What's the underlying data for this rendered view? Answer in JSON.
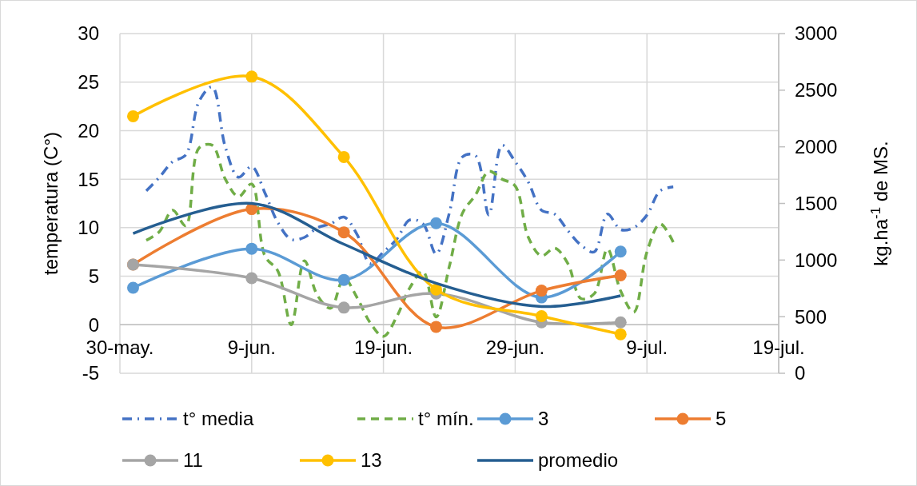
{
  "chart_data": {
    "type": "line",
    "ylabel": "temperatura (C°)",
    "y2label": "kg.ha$^{-1}$ de MS.",
    "xlim": [
      "--05-30",
      "--07-19"
    ],
    "xticks": [
      {
        "value": "--05-30",
        "label": "30-may."
      },
      {
        "value": "--06-09",
        "label": "9-jun."
      },
      {
        "value": "--06-19",
        "label": "19-jun."
      },
      {
        "value": "--06-29",
        "label": "29-jun."
      },
      {
        "value": "--07-09",
        "label": "9-jul."
      },
      {
        "value": "--07-19",
        "label": "19-jul."
      }
    ],
    "ylim": [
      -5,
      30
    ],
    "yticks": [
      -5,
      0,
      5,
      10,
      15,
      20,
      25,
      30
    ],
    "y2lim": [
      0,
      3000
    ],
    "y2ticks": [
      0,
      500,
      1000,
      1500,
      2000,
      2500,
      3000
    ],
    "grid": true,
    "legend": "bottom",
    "series": [
      {
        "name": "t° media",
        "color": "#4472c4",
        "line_style": "dashdot",
        "marker": "none",
        "x": [
          "--06-01",
          "--06-02",
          "--06-03",
          "--06-04",
          "--06-05",
          "--06-06",
          "--06-07",
          "--06-08",
          "--06-09",
          "--06-10",
          "--06-11",
          "--06-12",
          "--06-13",
          "--06-14",
          "--06-15",
          "--06-16",
          "--06-17",
          "--06-18",
          "--06-19",
          "--06-20",
          "--06-21",
          "--06-22",
          "--06-23",
          "--06-24",
          "--06-25",
          "--06-26",
          "--06-27",
          "--06-28",
          "--06-29",
          "--06-30",
          "--07-01",
          "--07-02",
          "--07-03",
          "--07-04",
          "--07-05",
          "--07-06",
          "--07-07",
          "--07-08",
          "--07-09",
          "--07-10",
          "--07-11"
        ],
        "values": [
          13.8,
          15.2,
          16.8,
          17.5,
          23,
          24.5,
          18.3,
          15.2,
          16.3,
          13.6,
          10.5,
          8.8,
          9,
          10,
          10.4,
          11.1,
          9.3,
          6.3,
          7.5,
          8.8,
          10.8,
          10.4,
          7.3,
          11.5,
          17.3,
          17.4,
          11.3,
          18.5,
          16.8,
          14.7,
          11.8,
          11.4,
          9.7,
          8.2,
          7.5,
          11.4,
          9.8,
          10,
          11.3,
          13.8,
          14.2
        ]
      },
      {
        "name": "t° mín.",
        "color": "#70ad47",
        "line_style": "dashed",
        "marker": "none",
        "x": [
          "--06-01",
          "--06-02",
          "--06-03",
          "--06-04",
          "--06-05",
          "--06-06",
          "--06-07",
          "--06-08",
          "--06-09",
          "--06-10",
          "--06-11",
          "--06-12",
          "--06-13",
          "--06-14",
          "--06-15",
          "--06-16",
          "--06-17",
          "--06-18",
          "--06-19",
          "--06-20",
          "--06-21",
          "--06-22",
          "--06-23",
          "--06-24",
          "--06-25",
          "--06-26",
          "--06-27",
          "--06-28",
          "--06-29",
          "--06-30",
          "--07-01",
          "--07-02",
          "--07-03",
          "--07-04",
          "--07-05",
          "--07-06",
          "--07-07",
          "--07-08",
          "--07-09",
          "--07-10",
          "--07-11"
        ],
        "values": [
          8.7,
          9.6,
          11.8,
          10.2,
          18.2,
          18.5,
          15,
          13.2,
          14.5,
          7.1,
          5.5,
          0,
          6.6,
          3,
          1.7,
          4.8,
          2.8,
          0.2,
          -1.2,
          0.8,
          3.8,
          5.5,
          0.8,
          6,
          11.5,
          13.4,
          15.8,
          15,
          14.3,
          9,
          7.1,
          7.9,
          6.3,
          2.7,
          3.2,
          7.8,
          3.5,
          1.3,
          7.5,
          10.4,
          8.5
        ]
      },
      {
        "name": "3",
        "color": "#5b9bd5",
        "axis": "y2",
        "line_style": "solid",
        "marker": "circle",
        "x": [
          "--05-31",
          "--06-09",
          "--06-16",
          "--06-23",
          "--07-01",
          "--07-07"
        ],
        "values": [
          755,
          1100,
          825,
          1325,
          670,
          1075
        ]
      },
      {
        "name": "5",
        "color": "#ed7d31",
        "axis": "y2",
        "line_style": "solid",
        "marker": "circle",
        "x": [
          "--05-31",
          "--06-09",
          "--06-16",
          "--06-23",
          "--07-01",
          "--07-07"
        ],
        "values": [
          960,
          1450,
          1245,
          410,
          730,
          865
        ]
      },
      {
        "name": "11",
        "color": "#a5a5a5",
        "axis": "y2",
        "line_style": "solid",
        "marker": "circle",
        "x": [
          "--05-31",
          "--06-09",
          "--06-16",
          "--06-23",
          "--07-01",
          "--07-07"
        ],
        "values": [
          960,
          840,
          580,
          705,
          450,
          450
        ]
      },
      {
        "name": "13",
        "color": "#ffc000",
        "axis": "y2",
        "line_style": "solid",
        "marker": "circle",
        "x": [
          "--05-31",
          "--06-09",
          "--06-16",
          "--06-23",
          "--07-01",
          "--07-07"
        ],
        "values": [
          2270,
          2620,
          1910,
          740,
          505,
          345
        ]
      },
      {
        "name": "promedio",
        "color": "#255e91",
        "axis": "y2",
        "line_style": "solid",
        "marker": "none",
        "x": [
          "--05-31",
          "--06-09",
          "--06-16",
          "--06-23",
          "--07-01",
          "--07-07"
        ],
        "values": [
          1235,
          1500,
          1140,
          795,
          590,
          685
        ]
      }
    ]
  }
}
